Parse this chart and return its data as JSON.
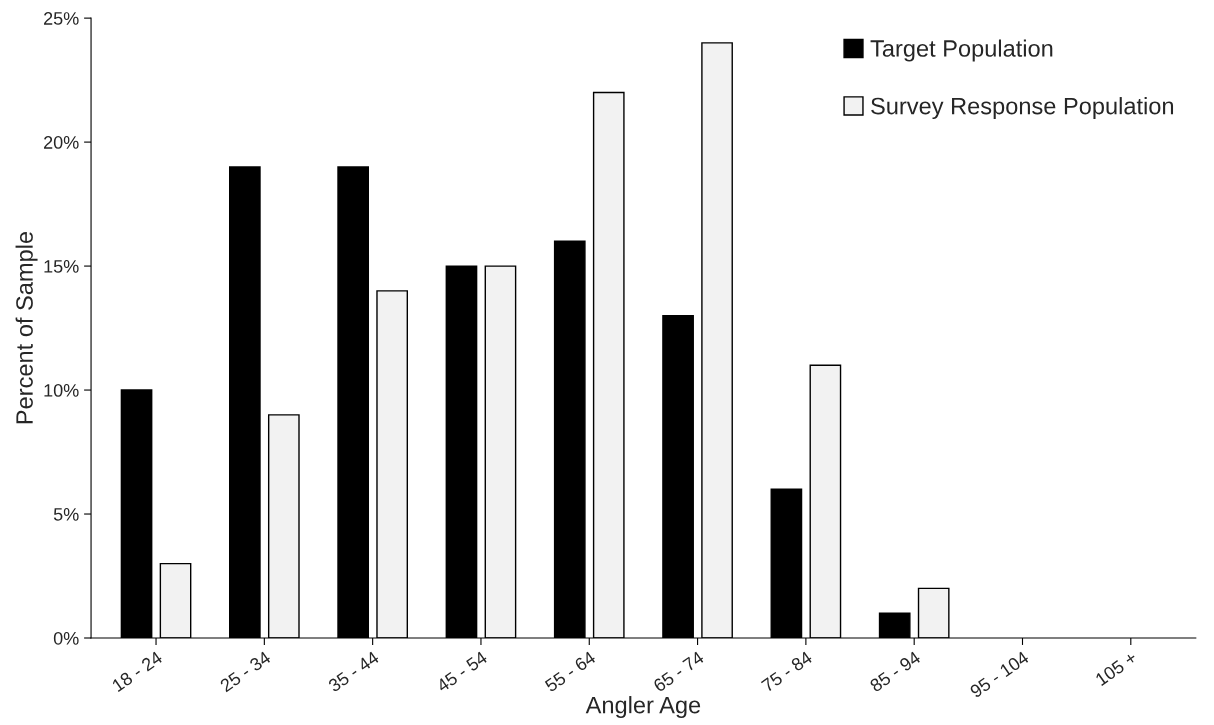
{
  "chart_data": {
    "type": "bar",
    "xlabel": "Angler Age",
    "ylabel": "Percent of Sample",
    "categories": [
      "18 - 24",
      "25 - 34",
      "35 - 44",
      "45 - 54",
      "55 - 64",
      "65 - 74",
      "75 - 84",
      "85 - 94",
      "95 - 104",
      "105 +"
    ],
    "series": [
      {
        "name": "Target Population",
        "color": "#000000",
        "values": [
          10,
          19,
          19,
          15,
          16,
          13,
          6,
          1,
          0,
          0
        ]
      },
      {
        "name": "Survey Response Population",
        "color": "#f2f2f2",
        "values": [
          3,
          9,
          14,
          15,
          22,
          24,
          11,
          2,
          0,
          0
        ]
      }
    ],
    "ylim": [
      0,
      25
    ],
    "yticks": [
      {
        "value": 0,
        "label": "0%"
      },
      {
        "value": 5,
        "label": "5%"
      },
      {
        "value": 10,
        "label": "10%"
      },
      {
        "value": 15,
        "label": "15%"
      },
      {
        "value": 20,
        "label": "20%"
      },
      {
        "value": 25,
        "label": "25%"
      }
    ],
    "grid": false,
    "legend": "top right"
  }
}
